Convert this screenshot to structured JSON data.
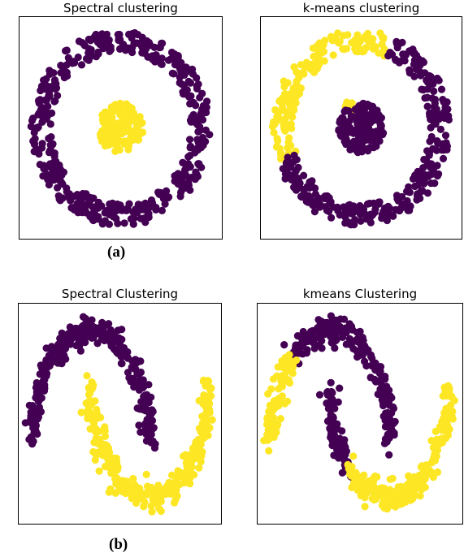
{
  "colors": {
    "cluster_a": "#440154",
    "cluster_b": "#fde725",
    "frame": "#000000"
  },
  "captions": {
    "a": "(a)",
    "b": "(b)"
  },
  "chart_data": [
    {
      "type": "scatter",
      "title": "Spectral clustering",
      "dataset": "circles",
      "xlim": [
        -1.25,
        1.25
      ],
      "ylim": [
        -1.25,
        1.25
      ],
      "axes_ticks": false,
      "series": [
        {
          "color": "#440154",
          "shape": "ring",
          "center": [
            0,
            0
          ],
          "radius": [
            0.85,
            1.1
          ],
          "n": 450,
          "note_region": "all points of the outer ring"
        },
        {
          "color": "#fde725",
          "shape": "blob",
          "center": [
            0,
            0
          ],
          "radius": [
            0,
            0.28
          ],
          "n": 150
        }
      ]
    },
    {
      "type": "scatter",
      "title": "k-means clustering",
      "dataset": "circles",
      "xlim": [
        -1.25,
        1.25
      ],
      "ylim": [
        -1.25,
        1.25
      ],
      "axes_ticks": false,
      "series": [
        {
          "color": "#fde725",
          "shape": "ring",
          "center": [
            0,
            0
          ],
          "radius": [
            0.85,
            1.1
          ],
          "n": 160,
          "angle_deg": [
            70,
            200
          ]
        },
        {
          "color": "#fde725",
          "shape": "blob",
          "center": [
            -0.15,
            0.22
          ],
          "radius": [
            0,
            0.08
          ],
          "n": 10
        },
        {
          "color": "#440154",
          "shape": "ring",
          "center": [
            0,
            0
          ],
          "radius": [
            0.85,
            1.1
          ],
          "n": 290,
          "angle_deg": [
            200,
            430
          ]
        },
        {
          "color": "#440154",
          "shape": "blob",
          "center": [
            0,
            0
          ],
          "radius": [
            0,
            0.28
          ],
          "n": 140
        }
      ]
    },
    {
      "type": "scatter",
      "title": "Spectral Clustering",
      "dataset": "two moons",
      "xlim": [
        -1.25,
        2.25
      ],
      "ylim": [
        -0.75,
        1.25
      ],
      "axes_ticks": false,
      "series": [
        {
          "color": "#440154",
          "shape": "moon_upper",
          "n": 320,
          "t_range": [
            0,
            180
          ]
        },
        {
          "color": "#fde725",
          "shape": "moon_lower",
          "n": 320,
          "t_range": [
            0,
            180
          ]
        }
      ]
    },
    {
      "type": "scatter",
      "title": "kmeans Clustering",
      "dataset": "two moons",
      "xlim": [
        -1.25,
        2.25
      ],
      "ylim": [
        -0.75,
        1.25
      ],
      "axes_ticks": false,
      "series": [
        {
          "color": "#440154",
          "shape": "moon_upper",
          "n": 230,
          "t_range": [
            50,
            180
          ]
        },
        {
          "color": "#fde725",
          "shape": "moon_upper",
          "n": 90,
          "t_range": [
            0,
            50
          ]
        },
        {
          "color": "#440154",
          "shape": "moon_lower",
          "n": 95,
          "t_range": [
            0,
            50
          ]
        },
        {
          "color": "#fde725",
          "shape": "moon_lower",
          "n": 225,
          "t_range": [
            50,
            180
          ]
        }
      ]
    }
  ]
}
